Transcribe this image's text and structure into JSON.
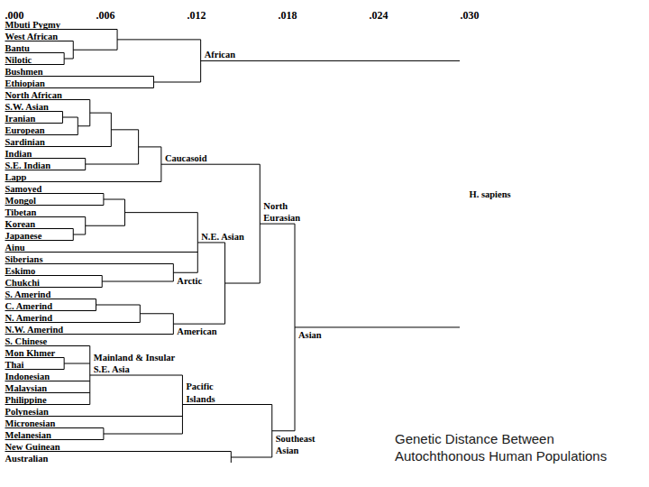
{
  "chart_data": {
    "type": "dendrogram",
    "title": "Genetic Distance Between Autochthonous Human Populations",
    "xlim": [
      0,
      0.03
    ],
    "xticks": [
      {
        "value": 0,
        "label": ".000"
      },
      {
        "value": 0.006,
        "label": ".006"
      },
      {
        "value": 0.012,
        "label": ".012"
      },
      {
        "value": 0.018,
        "label": ".018"
      },
      {
        "value": 0.024,
        "label": ".024"
      },
      {
        "value": 0.03,
        "label": ".030"
      }
    ],
    "tree": {
      "label": "H. sapiens",
      "height": 0.03,
      "children": [
        {
          "label": "African",
          "height": 0.0129,
          "children": [
            {
              "height": 0.0074,
              "children": [
                {
                  "name": "Mbuti Pygmy"
                },
                {
                  "height": 0.0045,
                  "children": [
                    {
                      "name": "West African"
                    },
                    {
                      "height": 0.0039,
                      "children": [
                        {
                          "name": "Bantu"
                        },
                        {
                          "name": "Nilotic"
                        }
                      ]
                    }
                  ]
                }
              ]
            },
            {
              "height": 0.0098,
              "children": [
                {
                  "name": "Bushmen"
                },
                {
                  "name": "Ethiopian"
                }
              ]
            }
          ]
        },
        {
          "label": "Asian",
          "height": 0.0191,
          "children": [
            {
              "label": "North\nEurasian",
              "height": 0.0168,
              "children": [
                {
                  "label": "Caucasoid",
                  "height": 0.0103,
                  "children": [
                    {
                      "height": 0.0088,
                      "children": [
                        {
                          "height": 0.007,
                          "children": [
                            {
                              "height": 0.0056,
                              "children": [
                                {
                                  "name": "North African"
                                },
                                {
                                  "height": 0.0048,
                                  "children": [
                                    {
                                      "height": 0.0038,
                                      "children": [
                                        {
                                          "name": "S.W. Asian"
                                        },
                                        {
                                          "name": "Iranian"
                                        }
                                      ]
                                    },
                                    {
                                      "name": "European"
                                    }
                                  ]
                                }
                              ]
                            },
                            {
                              "name": "Sardinian"
                            }
                          ]
                        },
                        {
                          "height": 0.0053,
                          "children": [
                            {
                              "name": "Indian"
                            },
                            {
                              "name": "S.E. Indian"
                            }
                          ]
                        }
                      ]
                    },
                    {
                      "name": "Lapp"
                    }
                  ]
                },
                {
                  "height": 0.0145,
                  "children": [
                    {
                      "label": "N.E. Asian",
                      "height": 0.0127,
                      "children": [
                        {
                          "height": 0.0079,
                          "children": [
                            {
                              "height": 0.0065,
                              "children": [
                                {
                                  "name": "Samoyed"
                                },
                                {
                                  "name": "Mongol"
                                }
                              ]
                            },
                            {
                              "height": 0.0053,
                              "children": [
                                {
                                  "name": "Tibetan"
                                },
                                {
                                  "height": 0.0045,
                                  "children": [
                                    {
                                      "name": "Korean"
                                    },
                                    {
                                      "name": "Japanese"
                                    }
                                  ]
                                }
                              ]
                            }
                          ]
                        },
                        {
                          "name": "Ainu"
                        },
                        {
                          "label": "Arctic",
                          "height": 0.0111,
                          "children": [
                            {
                              "name": "Siberians"
                            },
                            {
                              "height": 0.0064,
                              "children": [
                                {
                                  "name": "Eskimo"
                                },
                                {
                                  "name": "Chukchi"
                                }
                              ]
                            }
                          ]
                        }
                      ]
                    },
                    {
                      "label": "American",
                      "height": 0.0111,
                      "children": [
                        {
                          "height": 0.0089,
                          "children": [
                            {
                              "height": 0.006,
                              "children": [
                                {
                                  "name": "S. Amerind"
                                },
                                {
                                  "name": "C. Amerind"
                                }
                              ]
                            },
                            {
                              "name": "N. Amerind"
                            }
                          ]
                        },
                        {
                          "name": "N.W. Amerind"
                        }
                      ]
                    }
                  ]
                }
              ]
            },
            {
              "label": "Southeast\nAsian",
              "height": 0.0176,
              "children": [
                {
                  "label": "Pacific\nIslands",
                  "height": 0.0117,
                  "children": [
                    {
                      "label": "Mainland & Insular\nS.E. Asia",
                      "height": 0.0056,
                      "children": [
                        {
                          "name": "S. Chinese"
                        },
                        {
                          "height": 0.0039,
                          "children": [
                            {
                              "name": "Mon Khmer"
                            },
                            {
                              "name": "Thai"
                            }
                          ]
                        },
                        {
                          "name": "Indonesian"
                        },
                        {
                          "name": "Malaysian"
                        },
                        {
                          "name": "Philippine"
                        }
                      ]
                    },
                    {
                      "name": "Polynesian"
                    },
                    {
                      "height": 0.0065,
                      "children": [
                        {
                          "name": "Micronesian"
                        },
                        {
                          "name": "Melanesian"
                        }
                      ]
                    }
                  ]
                },
                {
                  "height": 0.0149,
                  "children": [
                    {
                      "name": "New Guinean"
                    },
                    {
                      "name": "Australian"
                    }
                  ]
                }
              ]
            }
          ]
        }
      ]
    }
  }
}
